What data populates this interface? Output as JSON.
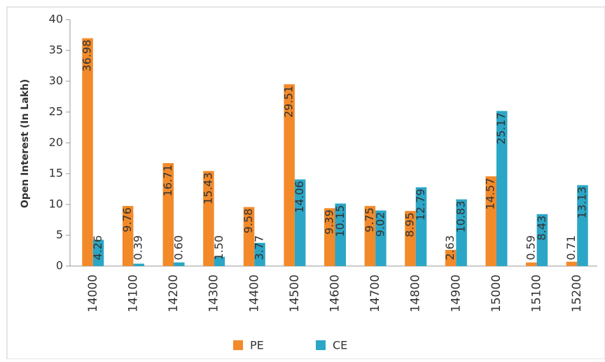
{
  "chart_data": {
    "type": "bar",
    "y_label": "Open Interest  (In Lakh)",
    "categories": [
      "14000",
      "14100",
      "14200",
      "14300",
      "14400",
      "14500",
      "14600",
      "14700",
      "14800",
      "14900",
      "15000",
      "15100",
      "15200"
    ],
    "series": [
      {
        "name": "PE",
        "color": "#f28a2a",
        "values": [
          36.98,
          9.76,
          16.71,
          15.43,
          9.58,
          29.51,
          9.39,
          9.75,
          8.95,
          2.63,
          14.57,
          0.59,
          0.71
        ],
        "value_labels": [
          "36.98",
          "9.76",
          "16.71",
          "15.43",
          "9.58",
          "29.51",
          "9.39",
          "9.75",
          "8.95",
          "2.63",
          "14.57",
          "0.59",
          "0.71"
        ]
      },
      {
        "name": "CE",
        "color": "#2ba6c6",
        "values": [
          4.26,
          0.39,
          0.6,
          1.5,
          3.77,
          14.06,
          10.15,
          9.02,
          12.79,
          10.83,
          25.17,
          8.43,
          13.13
        ],
        "value_labels": [
          "4.26",
          "0.39",
          "0.60",
          "1.50",
          "3.77",
          "14.06",
          "10.15",
          "9.02",
          "12.79",
          "10.83",
          "25.17",
          "8.43",
          "13.13"
        ]
      }
    ],
    "ylim": [
      0,
      40
    ],
    "yticks": [
      0,
      5,
      10,
      15,
      20,
      25,
      30,
      35,
      40
    ],
    "grid": false,
    "legend": "bottom"
  }
}
